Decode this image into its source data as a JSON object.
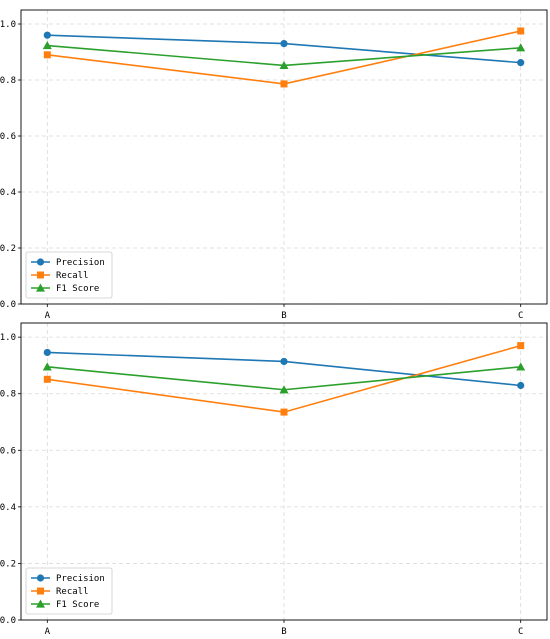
{
  "chart_data": [
    {
      "type": "line",
      "categories": [
        "A",
        "B",
        "C"
      ],
      "ylim": [
        0,
        1.05
      ],
      "yticks": [
        "0.0",
        "0.2",
        "0.4",
        "0.6",
        "0.8",
        "1.0"
      ],
      "grid": true,
      "legend_position": "lower-left",
      "series": [
        {
          "name": "Precision",
          "values": [
            0.96,
            0.93,
            0.862
          ],
          "color": "#1f77b4",
          "marker": "circle"
        },
        {
          "name": "Recall",
          "values": [
            0.89,
            0.786,
            0.975
          ],
          "color": "#ff7f0e",
          "marker": "square"
        },
        {
          "name": "F1 Score",
          "values": [
            0.923,
            0.852,
            0.915
          ],
          "color": "#2ca02c",
          "marker": "triangle"
        }
      ]
    },
    {
      "type": "line",
      "categories": [
        "A",
        "B",
        "C"
      ],
      "ylim": [
        0,
        1.05
      ],
      "yticks": [
        "0.0",
        "0.2",
        "0.4",
        "0.6",
        "0.8",
        "1.0"
      ],
      "grid": true,
      "legend_position": "lower-left",
      "series": [
        {
          "name": "Precision",
          "values": [
            0.946,
            0.914,
            0.829
          ],
          "color": "#1f77b4",
          "marker": "circle"
        },
        {
          "name": "Recall",
          "values": [
            0.851,
            0.735,
            0.97
          ],
          "color": "#ff7f0e",
          "marker": "square"
        },
        {
          "name": "F1 Score",
          "values": [
            0.895,
            0.814,
            0.895
          ],
          "color": "#2ca02c",
          "marker": "triangle"
        }
      ]
    }
  ]
}
